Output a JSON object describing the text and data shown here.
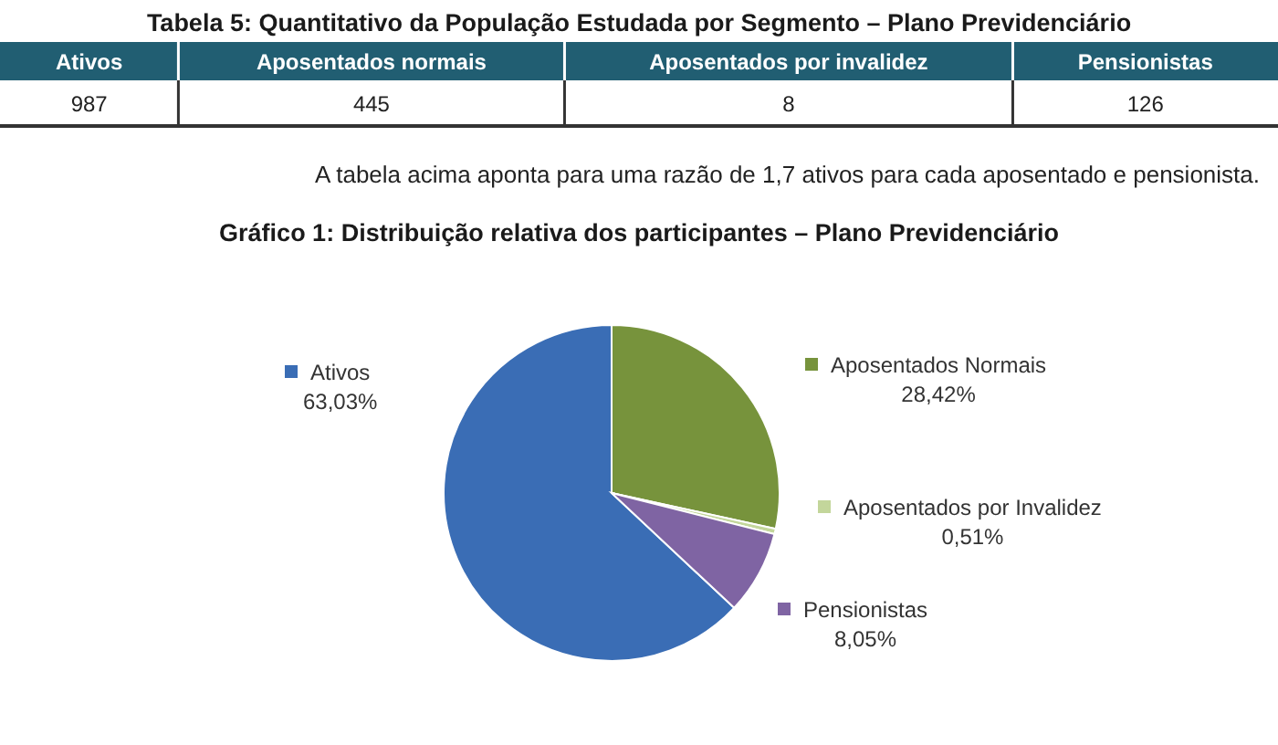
{
  "chart_data": [
    {
      "type": "other",
      "title": "Tabela 5: Quantitativo da População Estudada por Segmento – Plano Previdenciário",
      "categories": [
        "Ativos",
        "Aposentados normais",
        "Aposentados por invalidez",
        "Pensionistas"
      ],
      "values": [
        987,
        445,
        8,
        126
      ],
      "color": "#215e72",
      "data_labels": true,
      "annotations": [
        "A tabela acima aponta para uma razão de 1,7 ativos para cada aposentado e pensionista."
      ]
    },
    {
      "type": "pie",
      "title": "Gráfico 1: Distribuição relativa dos participantes – Plano Previdenciário",
      "categories": [
        "Ativos",
        "Aposentados Normais",
        "Aposentados por Invalidez",
        "Pensionistas"
      ],
      "values": [
        63.03,
        28.42,
        0.51,
        8.05
      ],
      "colors": [
        "#3a6db5",
        "#77933c",
        "#c3d69b",
        "#7f64a3"
      ],
      "value_labels": [
        "63,03%",
        "28,42%",
        "0,51%",
        "8,05%"
      ],
      "legend": "right"
    }
  ]
}
